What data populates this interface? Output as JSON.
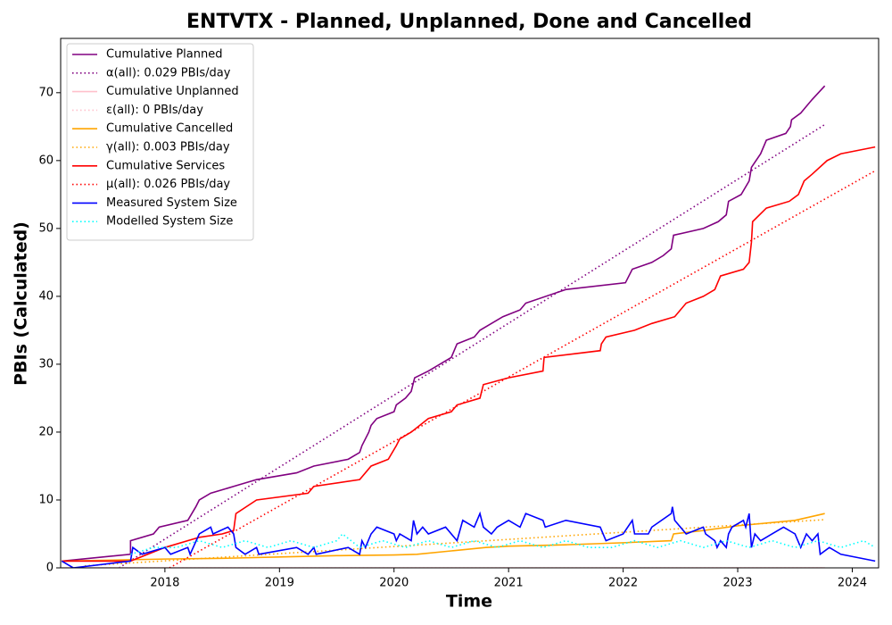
{
  "chart_data": {
    "type": "line",
    "title": "ENTVTX - Planned, Unplanned, Done  and Cancelled",
    "x_label": "Time",
    "y_label": "PBIs (Calculated)",
    "xlim": [
      2017.09,
      2024.23
    ],
    "xticks": [
      2018,
      2019,
      2020,
      2021,
      2022,
      2023,
      2024
    ],
    "ylim": [
      0,
      78
    ],
    "yticks": [
      0,
      10,
      20,
      30,
      40,
      50,
      60,
      70
    ],
    "legend": "upper left",
    "series": [
      {
        "name": "Cumulative Planned",
        "color": "#800080",
        "style": "solid",
        "x": [
          2017.1,
          2017.7,
          2017.7,
          2017.9,
          2017.95,
          2018.2,
          2018.27,
          2018.3,
          2018.4,
          2018.6,
          2018.8,
          2019.15,
          2019.3,
          2019.6,
          2019.7,
          2019.72,
          2019.78,
          2019.8,
          2019.85,
          2020.0,
          2020.02,
          2020.1,
          2020.15,
          2020.18,
          2020.3,
          2020.5,
          2020.55,
          2020.7,
          2020.75,
          2020.85,
          2020.95,
          2021.1,
          2021.15,
          2021.5,
          2022.02,
          2022.08,
          2022.25,
          2022.35,
          2022.42,
          2022.44,
          2022.7,
          2022.83,
          2022.9,
          2022.92,
          2023.03,
          2023.1,
          2023.12,
          2023.2,
          2023.25,
          2023.42,
          2023.46,
          2023.47,
          2023.55,
          2023.6,
          2023.65,
          2023.76
        ],
        "values": [
          1,
          2,
          4,
          5,
          6,
          7,
          9,
          10,
          11,
          12,
          13,
          14,
          15,
          16,
          17,
          18,
          20,
          21,
          22,
          23,
          24,
          25,
          26,
          28,
          29,
          31,
          33,
          34,
          35,
          36,
          37,
          38,
          39,
          41,
          42,
          44,
          45,
          46,
          47,
          49,
          50,
          51,
          52,
          54,
          55,
          57,
          59,
          61,
          63,
          64,
          65,
          66,
          67,
          68,
          69,
          71
        ]
      },
      {
        "name": "α(all): 0.029 PBIs/day",
        "color": "#800080",
        "style": "dotted",
        "x": [
          2017.6,
          2023.76
        ],
        "values": [
          0,
          65.3
        ]
      },
      {
        "name": "Cumulative Unplanned",
        "color": "#ffc0cb",
        "style": "solid",
        "x": [
          2017.1,
          2023.76
        ],
        "values": [
          0,
          0
        ]
      },
      {
        "name": "ε(all): 0 PBIs/day",
        "color": "#ffc0cb",
        "style": "dotted",
        "x": [
          2017.1,
          2023.76
        ],
        "values": [
          0,
          0
        ]
      },
      {
        "name": "Cumulative Cancelled",
        "color": "#ffa500",
        "style": "solid",
        "x": [
          2017.1,
          2017.7,
          2018.0,
          2018.5,
          2019.0,
          2019.5,
          2020.0,
          2020.2,
          2020.5,
          2020.8,
          2021.0,
          2021.5,
          2022.0,
          2022.42,
          2022.44,
          2022.7,
          2023.0,
          2023.5,
          2023.76
        ],
        "values": [
          1,
          1.2,
          1.3,
          1.4,
          1.6,
          1.8,
          1.9,
          2,
          2.5,
          3,
          3.2,
          3.4,
          3.7,
          4,
          5,
          5.5,
          6.2,
          7,
          8
        ]
      },
      {
        "name": "γ(all): 0.003 PBIs/day",
        "color": "#ffa500",
        "style": "dotted",
        "x": [
          2017.3,
          2023.76
        ],
        "values": [
          0.3,
          7.1
        ]
      },
      {
        "name": "Cumulative Services",
        "color": "#ff0000",
        "style": "solid",
        "x": [
          2017.1,
          2017.7,
          2018.0,
          2018.3,
          2018.5,
          2018.6,
          2018.62,
          2018.8,
          2019.25,
          2019.3,
          2019.7,
          2019.8,
          2019.95,
          2020.02,
          2020.05,
          2020.15,
          2020.3,
          2020.5,
          2020.55,
          2020.75,
          2020.78,
          2021.0,
          2021.3,
          2021.31,
          2021.8,
          2021.81,
          2021.85,
          2022.1,
          2022.25,
          2022.45,
          2022.55,
          2022.7,
          2022.8,
          2022.85,
          2023.05,
          2023.1,
          2023.12,
          2023.13,
          2023.25,
          2023.45,
          2023.53,
          2023.58,
          2023.65,
          2023.78,
          2023.9,
          2024.2
        ],
        "values": [
          1,
          1,
          3,
          4.5,
          5,
          5.5,
          8,
          10,
          11,
          12,
          13,
          15,
          16,
          18,
          19,
          20,
          22,
          23,
          24,
          25,
          27,
          28,
          29,
          31,
          32,
          33,
          34,
          35,
          36,
          37,
          39,
          40,
          41,
          43,
          44,
          45,
          48,
          51,
          53,
          54,
          55,
          57,
          58,
          60,
          61,
          62
        ]
      },
      {
        "name": "μ(all): 0.026 PBIs/day",
        "color": "#ff0000",
        "style": "dotted",
        "x": [
          2018.04,
          2024.2
        ],
        "values": [
          0,
          58.5
        ]
      },
      {
        "name": "Measured System Size",
        "color": "#0000ff",
        "style": "solid",
        "x": [
          2017.1,
          2017.2,
          2017.7,
          2017.72,
          2017.8,
          2018.0,
          2018.05,
          2018.2,
          2018.22,
          2018.3,
          2018.4,
          2018.42,
          2018.55,
          2018.6,
          2018.62,
          2018.7,
          2018.8,
          2018.82,
          2019.15,
          2019.25,
          2019.3,
          2019.32,
          2019.6,
          2019.7,
          2019.72,
          2019.75,
          2019.8,
          2019.85,
          2020.0,
          2020.02,
          2020.05,
          2020.15,
          2020.17,
          2020.2,
          2020.25,
          2020.3,
          2020.45,
          2020.55,
          2020.6,
          2020.7,
          2020.75,
          2020.78,
          2020.85,
          2020.9,
          2021.0,
          2021.1,
          2021.15,
          2021.3,
          2021.32,
          2021.5,
          2021.8,
          2021.85,
          2022.0,
          2022.08,
          2022.1,
          2022.22,
          2022.25,
          2022.42,
          2022.43,
          2022.45,
          2022.55,
          2022.7,
          2022.72,
          2022.8,
          2022.82,
          2022.85,
          2022.9,
          2022.92,
          2022.95,
          2023.05,
          2023.07,
          2023.1,
          2023.12,
          2023.15,
          2023.2,
          2023.3,
          2023.4,
          2023.5,
          2023.55,
          2023.6,
          2023.65,
          2023.7,
          2023.72,
          2023.8,
          2023.9,
          2024.2
        ],
        "values": [
          1,
          0,
          1,
          3,
          2,
          3,
          2,
          3,
          2,
          5,
          6,
          5,
          6,
          5,
          3,
          2,
          3,
          2,
          3,
          2,
          3,
          2,
          3,
          2,
          4,
          3,
          5,
          6,
          5,
          4,
          5,
          4,
          7,
          5,
          6,
          5,
          6,
          4,
          7,
          6,
          8,
          6,
          5,
          6,
          7,
          6,
          8,
          7,
          6,
          7,
          6,
          4,
          5,
          7,
          5,
          5,
          6,
          8,
          9,
          7,
          5,
          6,
          5,
          4,
          3,
          4,
          3,
          5,
          6,
          7,
          6,
          8,
          3,
          5,
          4,
          5,
          6,
          5,
          3,
          5,
          4,
          5,
          2,
          3,
          2,
          1
        ]
      },
      {
        "name": "Modelled System Size",
        "color": "#00ffff",
        "style": "dotted",
        "x": [
          2017.7,
          2017.9,
          2018.1,
          2018.3,
          2018.5,
          2018.7,
          2018.9,
          2019.1,
          2019.3,
          2019.5,
          2019.55,
          2019.7,
          2019.9,
          2020.1,
          2020.3,
          2020.5,
          2020.7,
          2020.9,
          2021.1,
          2021.3,
          2021.5,
          2021.7,
          2021.9,
          2022.1,
          2022.3,
          2022.5,
          2022.7,
          2022.9,
          2023.1,
          2023.3,
          2023.5,
          2023.7,
          2023.9,
          2024.1,
          2024.2
        ],
        "values": [
          2,
          3,
          3,
          4,
          3,
          4,
          3,
          4,
          3,
          4,
          5,
          3,
          4,
          3,
          4,
          3,
          4,
          3,
          4,
          3,
          4,
          3,
          3,
          4,
          3,
          4,
          3,
          4,
          3,
          4,
          3,
          4,
          3,
          4,
          3
        ]
      }
    ]
  }
}
